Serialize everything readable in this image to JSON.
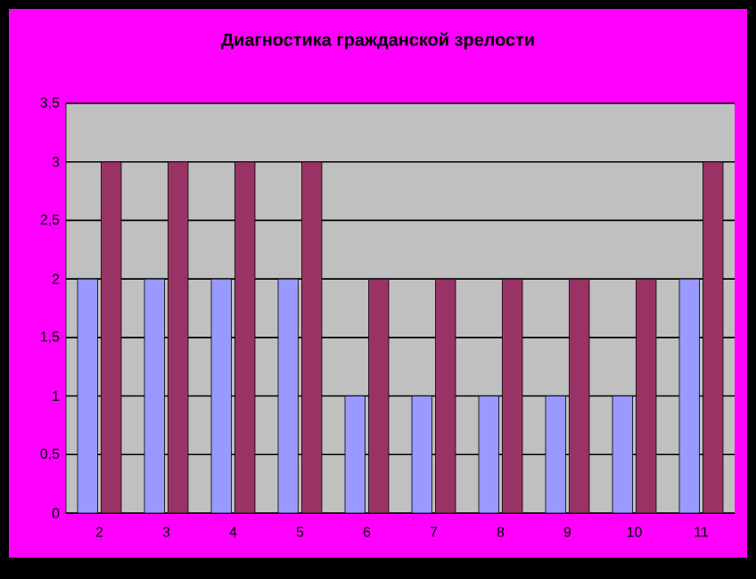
{
  "chart_data": {
    "type": "bar",
    "title": "Диагностика гражданской зрелости",
    "categories": [
      "2",
      "3",
      "4",
      "5",
      "6",
      "7",
      "8",
      "9",
      "10",
      "11"
    ],
    "series": [
      {
        "color": "#9999ff",
        "values": [
          2,
          2,
          2,
          2,
          1,
          1,
          1,
          1,
          1,
          2
        ]
      },
      {
        "color": "#993366",
        "values": [
          3,
          3,
          3,
          3,
          2,
          2,
          2,
          2,
          2,
          3
        ]
      }
    ],
    "ylim": [
      0,
      3.5
    ],
    "yticks": [
      0,
      {
        "value": 0.5,
        "label": "0,5"
      },
      1,
      {
        "value": 1.5,
        "label": "1,5"
      },
      2,
      {
        "value": 2.5,
        "label": "2,5"
      },
      3,
      {
        "value": 3.5,
        "label": "3,5"
      }
    ],
    "grid": "y",
    "legend": false
  }
}
